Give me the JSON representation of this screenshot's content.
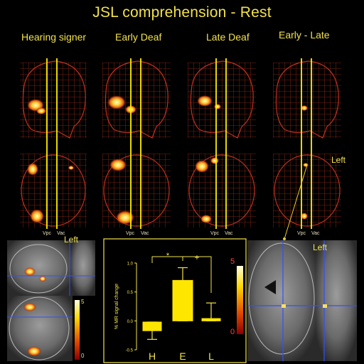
{
  "title": "JSL comprehension - Rest",
  "columns": [
    "Hearing signer",
    "Early Deaf",
    "Late Deaf",
    "Early - Late"
  ],
  "vpc_label": "Vpc",
  "vac_label": "Vac",
  "left_labels": [
    "Left",
    "Left",
    "Left"
  ],
  "colorbar_left": {
    "max": "5",
    "min": "0"
  },
  "colorbar_right": {
    "max": "5",
    "min": "0"
  },
  "chart_data": {
    "type": "boxplot",
    "categories": [
      "H",
      "E",
      "L"
    ],
    "ylabel": "% MR signal change",
    "ylim": [
      -0.5,
      1.0
    ],
    "yticks": [
      "1.0",
      "0.5",
      "0.0",
      "-0.5"
    ],
    "boxes": [
      {
        "name": "H",
        "whisker_low": -0.32,
        "q1": -0.17,
        "median": -0.17,
        "q3": -0.02,
        "whisker_high": -0.02
      },
      {
        "name": "E",
        "whisker_low": 0.0,
        "q1": 0.0,
        "median": 0.0,
        "q3": 0.7,
        "whisker_high": 0.92
      },
      {
        "name": "L",
        "whisker_low": 0.0,
        "q1": 0.0,
        "median": 0.02,
        "q3": 0.04,
        "whisker_high": 0.31
      }
    ],
    "significance": [
      "*",
      "+"
    ]
  }
}
